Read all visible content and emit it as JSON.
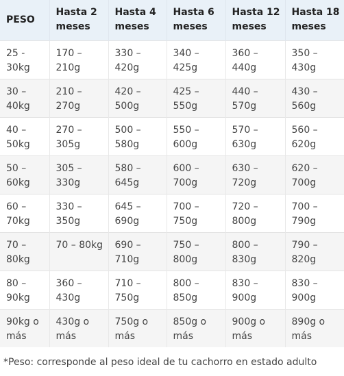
{
  "table": {
    "headers": [
      "PESO",
      "Hasta 2 meses",
      "Hasta 4 meses",
      "Hasta 6 meses",
      "Hasta 12 meses",
      "Hasta 18 meses"
    ],
    "rows": [
      [
        "25 - 30kg",
        "170 – 210g",
        "330 – 420g",
        "340 – 425g",
        "360 – 440g",
        "350 – 430g"
      ],
      [
        "30 – 40kg",
        "210 – 270g",
        "420 – 500g",
        "425 – 550g",
        "440 – 570g",
        "430 – 560g"
      ],
      [
        "40 – 50kg",
        "270 – 305g",
        "500 – 580g",
        "550 – 600g",
        "570 – 630g",
        "560 – 620g"
      ],
      [
        "50 – 60kg",
        "305 – 330g",
        "580 – 645g",
        "600 – 700g",
        "630 – 720g",
        "620 – 700g"
      ],
      [
        "60 – 70kg",
        "330 – 350g",
        "645 – 690g",
        "700 – 750g",
        "720 – 800g",
        "700 – 790g"
      ],
      [
        "70 – 80kg",
        "70 – 80kg",
        "690 – 710g",
        "750 – 800g",
        "800 – 830g",
        "790 – 820g"
      ],
      [
        "80 – 90kg",
        "360 – 430g",
        "710 – 750g",
        "800 – 850g",
        "830 – 900g",
        "830 – 900g"
      ],
      [
        "90kg o más",
        "430g o más",
        "750g o más",
        "850g o más",
        "900g o más",
        "890g o más"
      ]
    ]
  },
  "footnote": "*Peso: corresponde al peso ideal de tu cachorro en estado adulto",
  "colors": {
    "header_bg": "#e9f1f8",
    "row_alt_bg": "#f5f5f5",
    "text": "#444444"
  }
}
